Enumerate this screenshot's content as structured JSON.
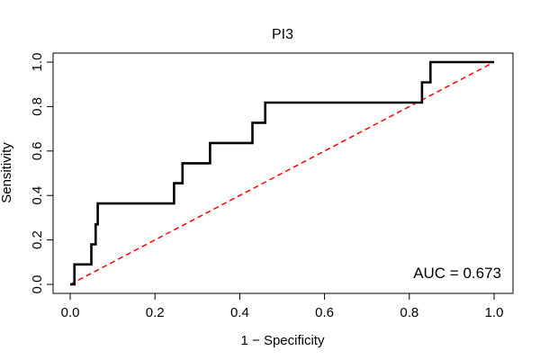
{
  "chart_data": {
    "type": "line",
    "title": "PI3",
    "xlabel": "1 − Specificity",
    "ylabel": "Sensitivity",
    "xlim": [
      0,
      1
    ],
    "ylim": [
      0,
      1
    ],
    "x_ticks": [
      "0.0",
      "0.2",
      "0.4",
      "0.6",
      "0.8",
      "1.0"
    ],
    "y_ticks": [
      "0.0",
      "0.2",
      "0.4",
      "0.6",
      "0.8",
      "1.0"
    ],
    "grid": false,
    "annotation": "AUC = 0.673",
    "series": [
      {
        "color": "#000000",
        "x": [
          0.0,
          0.01,
          0.01,
          0.05,
          0.05,
          0.06,
          0.06,
          0.065,
          0.065,
          0.245,
          0.245,
          0.265,
          0.265,
          0.33,
          0.33,
          0.43,
          0.43,
          0.46,
          0.46,
          0.83,
          0.83,
          0.85,
          0.85,
          1.0
        ],
        "y": [
          0.0,
          0.0,
          0.09,
          0.09,
          0.18,
          0.18,
          0.27,
          0.27,
          0.364,
          0.364,
          0.455,
          0.455,
          0.545,
          0.545,
          0.636,
          0.636,
          0.727,
          0.727,
          0.818,
          0.818,
          0.909,
          0.909,
          1.0,
          1.0
        ]
      },
      {
        "color": "#ff0000",
        "style": "dashed",
        "x": [
          0,
          1
        ],
        "y": [
          0,
          1
        ]
      }
    ]
  }
}
